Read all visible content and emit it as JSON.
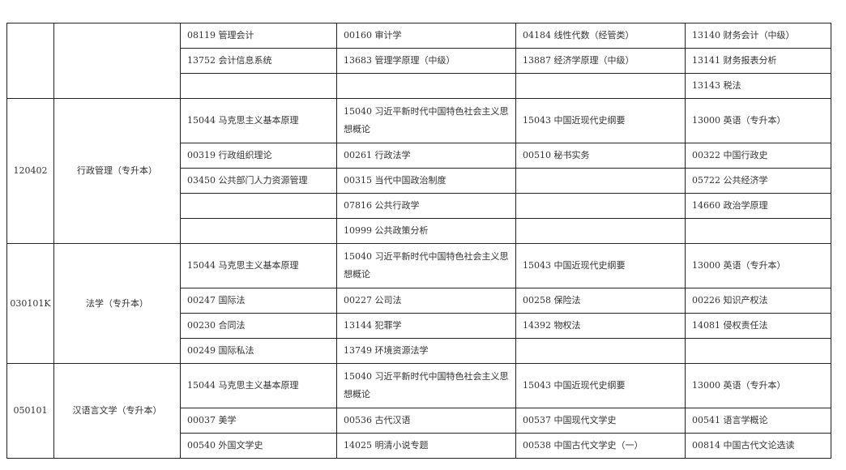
{
  "groups": [
    {
      "code": "",
      "name": "",
      "rows": [
        {
          "tall": false,
          "cells": [
            "08119 管理会计",
            "00160 审计学",
            "04184 线性代数（经管类）",
            "13140 财务会计（中级）"
          ]
        },
        {
          "tall": false,
          "cells": [
            "13752 会计信息系统",
            "13683 管理学原理（中级）",
            "13887 经济学原理（中级）",
            "13141 财务报表分析"
          ]
        },
        {
          "tall": false,
          "cells": [
            "",
            "",
            "",
            "13143 税法"
          ]
        }
      ]
    },
    {
      "code": "120402",
      "name": "行政管理（专升本）",
      "rows": [
        {
          "tall": true,
          "cells": [
            "15044 马克思主义基本原理",
            "15040 习近平新时代中国特色社会主义思想概论",
            "15043 中国近现代史纲要",
            "13000 英语（专升本）"
          ]
        },
        {
          "tall": false,
          "cells": [
            "00319 行政组织理论",
            "00261 行政法学",
            "00510 秘书实务",
            "00322 中国行政史"
          ]
        },
        {
          "tall": false,
          "cells": [
            "03450 公共部门人力资源管理",
            "00315 当代中国政治制度",
            "",
            "05722 公共经济学"
          ]
        },
        {
          "tall": false,
          "cells": [
            "",
            "07816 公共行政学",
            "",
            "14660 政治学原理"
          ]
        },
        {
          "tall": false,
          "cells": [
            "",
            "10999 公共政策分析",
            "",
            ""
          ]
        }
      ]
    },
    {
      "code": "030101K",
      "name": "法学（专升本）",
      "rows": [
        {
          "tall": true,
          "cells": [
            "15044 马克思主义基本原理",
            "15040 习近平新时代中国特色社会主义思想概论",
            "15043 中国近现代史纲要",
            "13000 英语（专升本）"
          ]
        },
        {
          "tall": false,
          "cells": [
            "00247 国际法",
            "00227 公司法",
            "00258 保险法",
            "00226 知识产权法"
          ]
        },
        {
          "tall": false,
          "cells": [
            "00230 合同法",
            "13144 犯罪学",
            "14392 物权法",
            "14081 侵权责任法"
          ]
        },
        {
          "tall": false,
          "cells": [
            "00249 国际私法",
            "13749 环境资源法学",
            "",
            ""
          ]
        }
      ]
    },
    {
      "code": "050101",
      "name": "汉语言文学（专升本）",
      "rows": [
        {
          "tall": true,
          "cells": [
            "15044 马克思主义基本原理",
            "15040 习近平新时代中国特色社会主义思想概论",
            "15043 中国近现代史纲要",
            "13000 英语（专升本）"
          ]
        },
        {
          "tall": false,
          "cells": [
            "00037 美学",
            "00536 古代汉语",
            "00537 中国现代文学史",
            "00541 语言学概论"
          ]
        },
        {
          "tall": false,
          "cells": [
            "00540 外国文学史",
            "14025 明清小说专题",
            "00538 中国古代文学史（一）",
            "00814 中国古代文论选读"
          ]
        }
      ]
    }
  ]
}
